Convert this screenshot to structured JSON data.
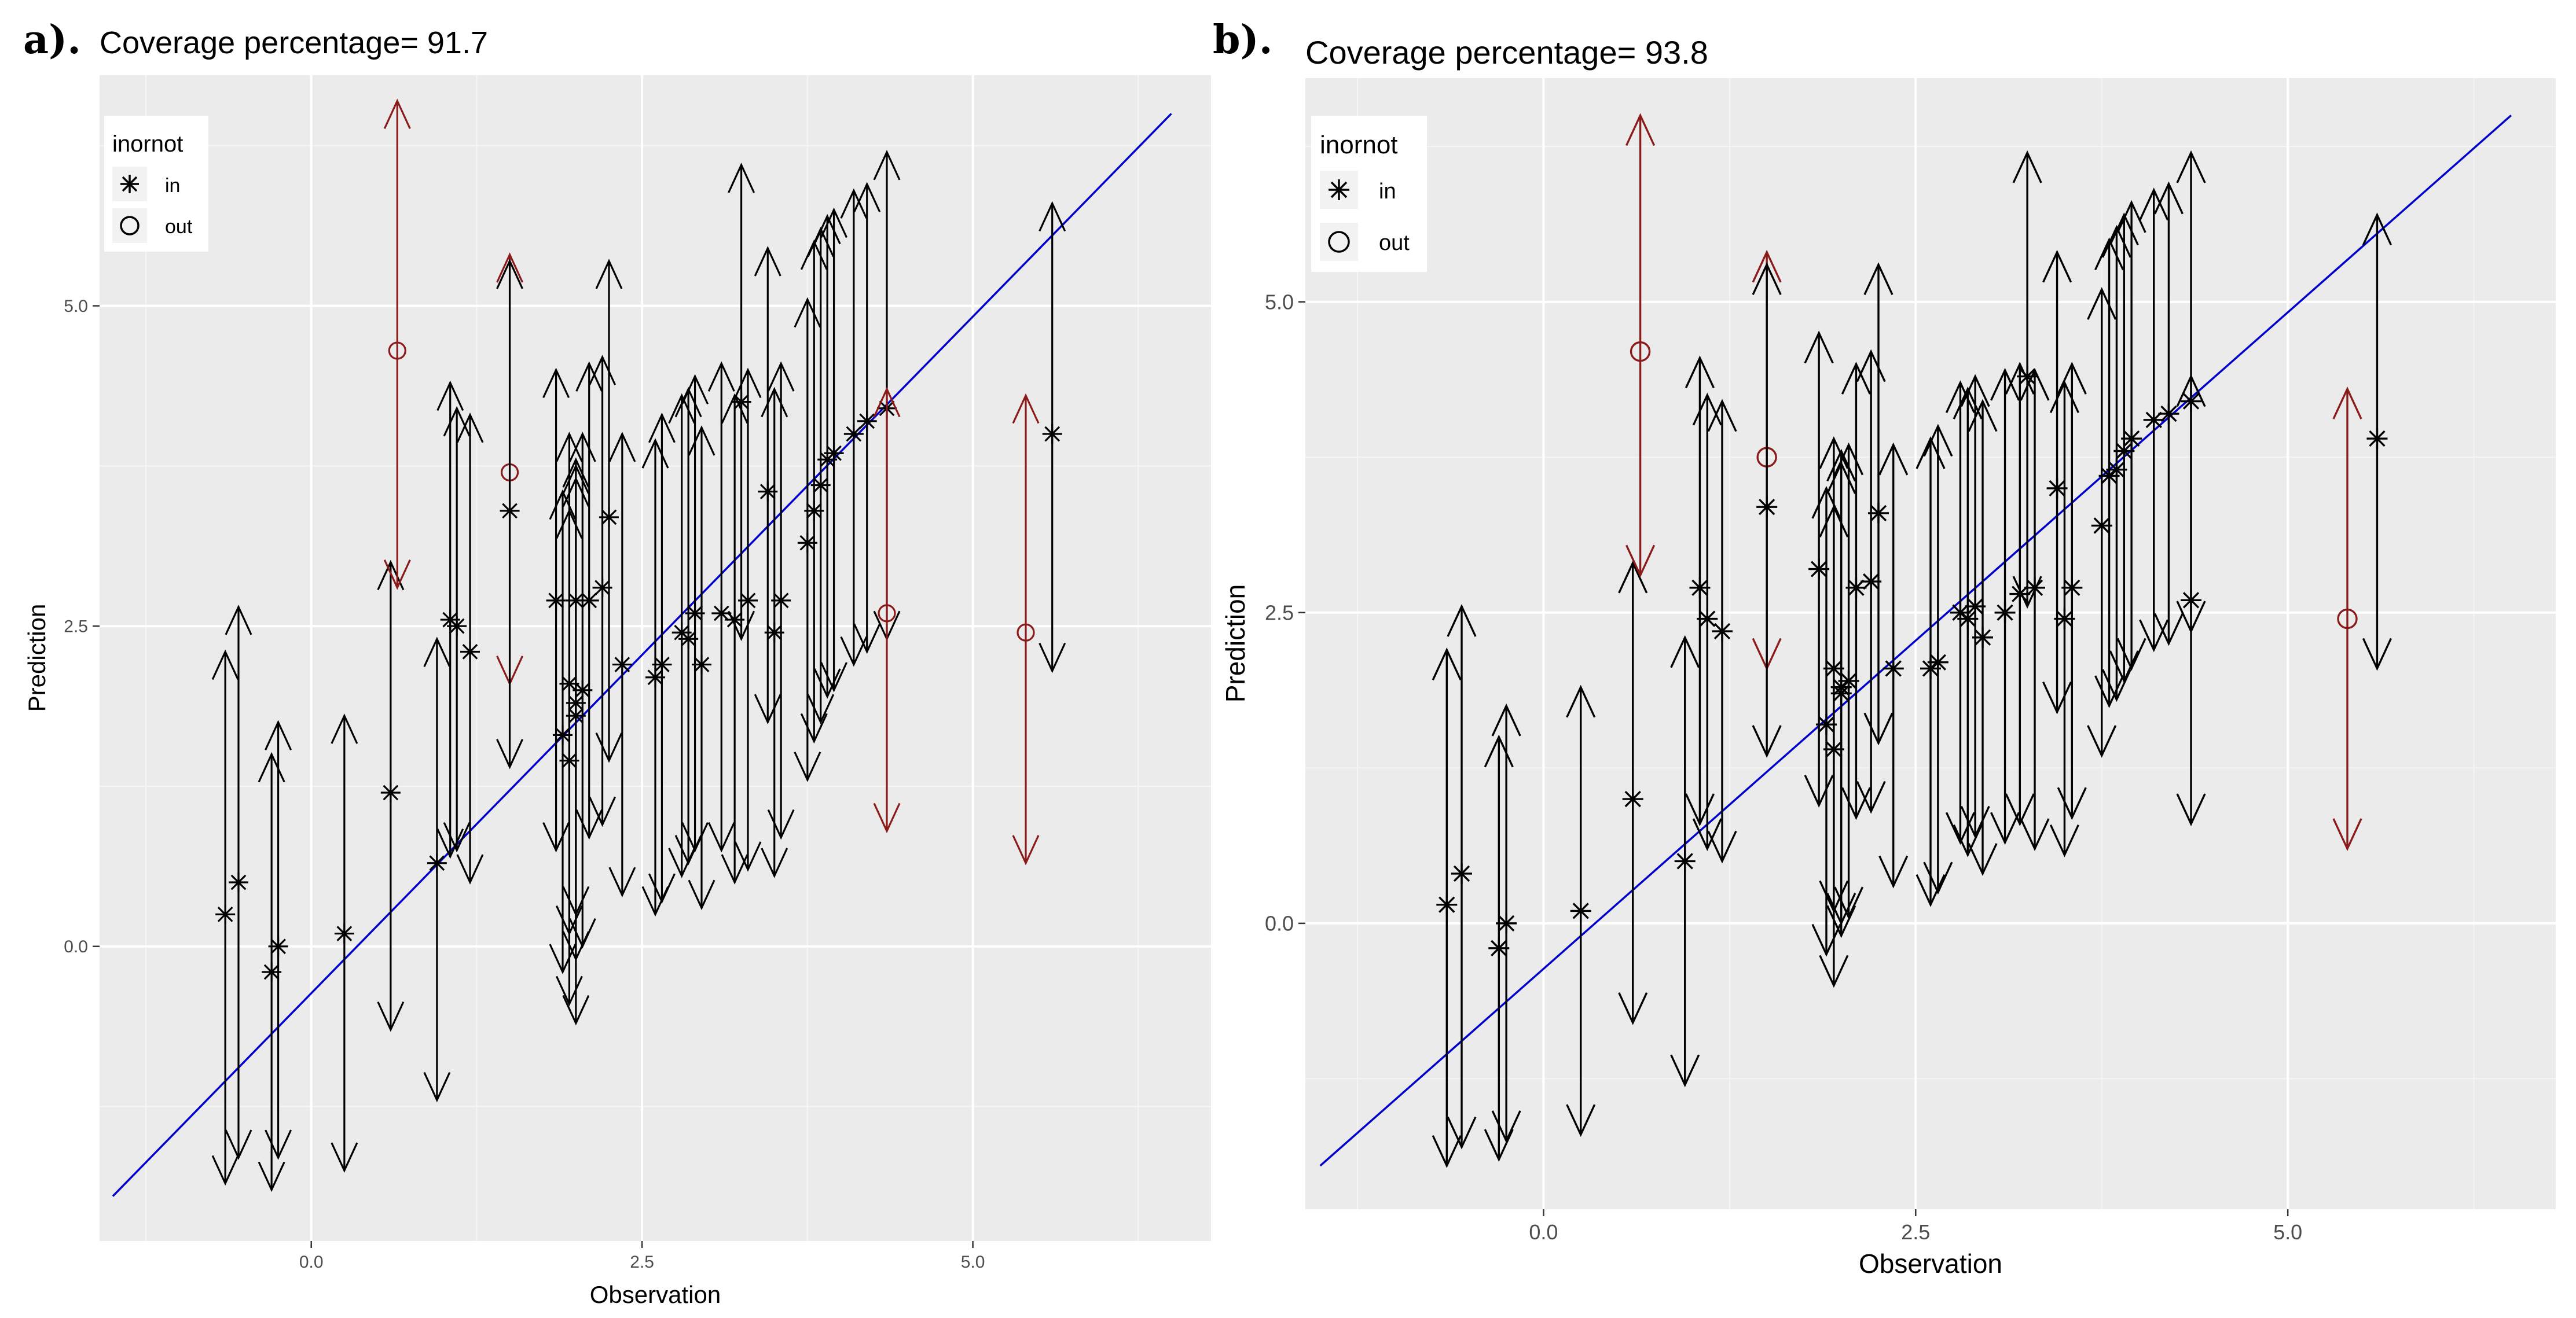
{
  "chart_data": [
    {
      "type": "scatter",
      "panel_label": "a).",
      "title": "Coverage percentage= 91.7",
      "xlabel": "Observation",
      "ylabel": "Prediction",
      "xlim": [
        -1.6,
        6.8
      ],
      "ylim": [
        -2.3,
        6.8
      ],
      "x_ticks": [
        "0.0",
        "2.5",
        "5.0"
      ],
      "y_ticks": [
        "0.0",
        "2.5",
        "5.0"
      ],
      "reference_line": {
        "x": [
          -1.5,
          6.5
        ],
        "y": [
          -1.95,
          6.5
        ],
        "color": "#0000cc"
      },
      "legend": {
        "title": "inornot",
        "position": "top-left",
        "entries": [
          "in",
          "out"
        ]
      },
      "colors": {
        "in": "#000000",
        "out": "#8b1a1a"
      },
      "points": [
        {
          "x": -0.65,
          "y": 0.25,
          "lo": -1.85,
          "hi": 2.3,
          "status": "in"
        },
        {
          "x": -0.55,
          "y": 0.5,
          "lo": -1.65,
          "hi": 2.65,
          "status": "in"
        },
        {
          "x": -0.3,
          "y": -0.2,
          "lo": -1.9,
          "hi": 1.5,
          "status": "in"
        },
        {
          "x": -0.25,
          "y": 0.0,
          "lo": -1.65,
          "hi": 1.75,
          "status": "in"
        },
        {
          "x": 0.25,
          "y": 0.1,
          "lo": -1.75,
          "hi": 1.8,
          "status": "in"
        },
        {
          "x": 0.6,
          "y": 1.2,
          "lo": -0.65,
          "hi": 3.0,
          "status": "in"
        },
        {
          "x": 0.65,
          "y": 4.65,
          "lo": 2.8,
          "hi": 6.6,
          "status": "out"
        },
        {
          "x": 0.95,
          "y": 0.65,
          "lo": -1.2,
          "hi": 2.4,
          "status": "in"
        },
        {
          "x": 1.05,
          "y": 2.55,
          "lo": 0.7,
          "hi": 4.4,
          "status": "in"
        },
        {
          "x": 1.1,
          "y": 2.5,
          "lo": 0.75,
          "hi": 4.2,
          "status": "in"
        },
        {
          "x": 1.2,
          "y": 2.3,
          "lo": 0.5,
          "hi": 4.15,
          "status": "in"
        },
        {
          "x": 1.5,
          "y": 3.7,
          "lo": 2.05,
          "hi": 5.4,
          "status": "out"
        },
        {
          "x": 1.5,
          "y": 3.4,
          "lo": 1.4,
          "hi": 5.35,
          "status": "in"
        },
        {
          "x": 1.85,
          "y": 2.7,
          "lo": 0.75,
          "hi": 4.5,
          "status": "in"
        },
        {
          "x": 1.9,
          "y": 1.65,
          "lo": -0.2,
          "hi": 3.55,
          "status": "in"
        },
        {
          "x": 1.95,
          "y": 1.45,
          "lo": -0.45,
          "hi": 3.4,
          "status": "in"
        },
        {
          "x": 1.95,
          "y": 2.05,
          "lo": 0.1,
          "hi": 4.0,
          "status": "in"
        },
        {
          "x": 2.0,
          "y": 1.9,
          "lo": -0.6,
          "hi": 3.75,
          "status": "in"
        },
        {
          "x": 2.0,
          "y": 1.8,
          "lo": -0.1,
          "hi": 3.65,
          "status": "in"
        },
        {
          "x": 2.0,
          "y": 2.7,
          "lo": 0.25,
          "hi": 3.8,
          "status": "in"
        },
        {
          "x": 2.05,
          "y": 2.0,
          "lo": 0.0,
          "hi": 4.0,
          "status": "in"
        },
        {
          "x": 2.1,
          "y": 2.7,
          "lo": 0.85,
          "hi": 4.55,
          "status": "in"
        },
        {
          "x": 2.2,
          "y": 2.8,
          "lo": 0.95,
          "hi": 4.6,
          "status": "in"
        },
        {
          "x": 2.25,
          "y": 3.35,
          "lo": 1.45,
          "hi": 5.35,
          "status": "in"
        },
        {
          "x": 2.35,
          "y": 2.2,
          "lo": 0.4,
          "hi": 4.0,
          "status": "in"
        },
        {
          "x": 2.6,
          "y": 2.1,
          "lo": 0.25,
          "hi": 3.95,
          "status": "in"
        },
        {
          "x": 2.65,
          "y": 2.2,
          "lo": 0.35,
          "hi": 4.15,
          "status": "in"
        },
        {
          "x": 2.8,
          "y": 2.45,
          "lo": 0.55,
          "hi": 4.3,
          "status": "in"
        },
        {
          "x": 2.85,
          "y": 2.4,
          "lo": 0.65,
          "hi": 4.35,
          "status": "in"
        },
        {
          "x": 2.9,
          "y": 2.6,
          "lo": 0.75,
          "hi": 4.45,
          "status": "in"
        },
        {
          "x": 2.95,
          "y": 2.2,
          "lo": 0.3,
          "hi": 4.05,
          "status": "in"
        },
        {
          "x": 3.1,
          "y": 2.6,
          "lo": 0.75,
          "hi": 4.55,
          "status": "in"
        },
        {
          "x": 3.2,
          "y": 2.55,
          "lo": 0.5,
          "hi": 4.3,
          "status": "in"
        },
        {
          "x": 3.25,
          "y": 4.25,
          "lo": 2.4,
          "hi": 6.1,
          "status": "in"
        },
        {
          "x": 3.3,
          "y": 2.7,
          "lo": 0.6,
          "hi": 4.5,
          "status": "in"
        },
        {
          "x": 3.45,
          "y": 3.55,
          "lo": 1.75,
          "hi": 5.45,
          "status": "in"
        },
        {
          "x": 3.5,
          "y": 2.45,
          "lo": 0.55,
          "hi": 4.35,
          "status": "in"
        },
        {
          "x": 3.55,
          "y": 2.7,
          "lo": 0.85,
          "hi": 4.55,
          "status": "in"
        },
        {
          "x": 3.75,
          "y": 3.15,
          "lo": 1.3,
          "hi": 5.05,
          "status": "in"
        },
        {
          "x": 3.8,
          "y": 3.4,
          "lo": 1.6,
          "hi": 5.5,
          "status": "in"
        },
        {
          "x": 3.85,
          "y": 3.6,
          "lo": 1.75,
          "hi": 5.6,
          "status": "in"
        },
        {
          "x": 3.9,
          "y": 3.8,
          "lo": 1.95,
          "hi": 5.7,
          "status": "in"
        },
        {
          "x": 3.95,
          "y": 3.85,
          "lo": 2.0,
          "hi": 5.75,
          "status": "in"
        },
        {
          "x": 4.1,
          "y": 4.0,
          "lo": 2.2,
          "hi": 5.9,
          "status": "in"
        },
        {
          "x": 4.2,
          "y": 4.1,
          "lo": 2.3,
          "hi": 5.95,
          "status": "in"
        },
        {
          "x": 4.35,
          "y": 4.2,
          "lo": 2.4,
          "hi": 6.2,
          "status": "in"
        },
        {
          "x": 4.35,
          "y": 2.6,
          "lo": 0.9,
          "hi": 4.35,
          "status": "out"
        },
        {
          "x": 5.4,
          "y": 2.45,
          "lo": 0.65,
          "hi": 4.3,
          "status": "out"
        },
        {
          "x": 5.6,
          "y": 4.0,
          "lo": 2.15,
          "hi": 5.8,
          "status": "in"
        }
      ]
    },
    {
      "type": "scatter",
      "panel_label": "b).",
      "title": "Coverage percentage= 93.8",
      "xlabel": "Observation",
      "ylabel": "Prediction",
      "xlim": [
        -1.6,
        6.8
      ],
      "ylim": [
        -2.3,
        6.8
      ],
      "x_ticks": [
        "0.0",
        "2.5",
        "5.0"
      ],
      "y_ticks": [
        "0.0",
        "2.5",
        "5.0"
      ],
      "reference_line": {
        "x": [
          -1.5,
          6.5
        ],
        "y": [
          -1.95,
          6.5
        ],
        "color": "#0000cc"
      },
      "legend": {
        "title": "inornot",
        "position": "top-left",
        "entries": [
          "in",
          "out"
        ]
      },
      "colors": {
        "in": "#000000",
        "out": "#8b1a1a"
      },
      "points": [
        {
          "x": -0.65,
          "y": 0.15,
          "lo": -1.95,
          "hi": 2.2,
          "status": "in"
        },
        {
          "x": -0.55,
          "y": 0.4,
          "lo": -1.8,
          "hi": 2.55,
          "status": "in"
        },
        {
          "x": -0.3,
          "y": -0.2,
          "lo": -1.9,
          "hi": 1.5,
          "status": "in"
        },
        {
          "x": -0.25,
          "y": 0.0,
          "lo": -1.75,
          "hi": 1.75,
          "status": "in"
        },
        {
          "x": 0.25,
          "y": 0.1,
          "lo": -1.7,
          "hi": 1.9,
          "status": "in"
        },
        {
          "x": 0.6,
          "y": 1.0,
          "lo": -0.8,
          "hi": 2.9,
          "status": "in"
        },
        {
          "x": 0.65,
          "y": 4.6,
          "lo": 2.8,
          "hi": 6.5,
          "status": "out"
        },
        {
          "x": 0.95,
          "y": 0.5,
          "lo": -1.3,
          "hi": 2.3,
          "status": "in"
        },
        {
          "x": 1.05,
          "y": 2.7,
          "lo": 0.8,
          "hi": 4.55,
          "status": "in"
        },
        {
          "x": 1.1,
          "y": 2.45,
          "lo": 0.6,
          "hi": 4.25,
          "status": "in"
        },
        {
          "x": 1.2,
          "y": 2.35,
          "lo": 0.5,
          "hi": 4.2,
          "status": "in"
        },
        {
          "x": 1.5,
          "y": 3.75,
          "lo": 2.05,
          "hi": 5.4,
          "status": "out"
        },
        {
          "x": 1.5,
          "y": 3.35,
          "lo": 1.35,
          "hi": 5.3,
          "status": "in"
        },
        {
          "x": 1.85,
          "y": 2.85,
          "lo": 0.95,
          "hi": 4.75,
          "status": "in"
        },
        {
          "x": 1.9,
          "y": 1.6,
          "lo": -0.25,
          "hi": 3.5,
          "status": "in"
        },
        {
          "x": 1.95,
          "y": 1.4,
          "lo": -0.5,
          "hi": 3.35,
          "status": "in"
        },
        {
          "x": 1.95,
          "y": 2.05,
          "lo": 0.1,
          "hi": 3.9,
          "status": "in"
        },
        {
          "x": 2.0,
          "y": 1.9,
          "lo": 0.0,
          "hi": 3.8,
          "status": "in"
        },
        {
          "x": 2.0,
          "y": 1.85,
          "lo": -0.1,
          "hi": 3.7,
          "status": "in"
        },
        {
          "x": 2.05,
          "y": 1.95,
          "lo": 0.05,
          "hi": 3.85,
          "status": "in"
        },
        {
          "x": 2.1,
          "y": 2.7,
          "lo": 0.85,
          "hi": 4.5,
          "status": "in"
        },
        {
          "x": 2.2,
          "y": 2.75,
          "lo": 0.9,
          "hi": 4.6,
          "status": "in"
        },
        {
          "x": 2.25,
          "y": 3.3,
          "lo": 1.45,
          "hi": 5.3,
          "status": "in"
        },
        {
          "x": 2.35,
          "y": 2.05,
          "lo": 0.3,
          "hi": 3.85,
          "status": "in"
        },
        {
          "x": 2.6,
          "y": 2.05,
          "lo": 0.15,
          "hi": 3.9,
          "status": "in"
        },
        {
          "x": 2.65,
          "y": 2.1,
          "lo": 0.25,
          "hi": 4.0,
          "status": "in"
        },
        {
          "x": 2.8,
          "y": 2.5,
          "lo": 0.65,
          "hi": 4.35,
          "status": "in"
        },
        {
          "x": 2.85,
          "y": 2.45,
          "lo": 0.55,
          "hi": 4.3,
          "status": "in"
        },
        {
          "x": 2.9,
          "y": 2.55,
          "lo": 0.7,
          "hi": 4.4,
          "status": "in"
        },
        {
          "x": 2.95,
          "y": 2.3,
          "lo": 0.4,
          "hi": 4.2,
          "status": "in"
        },
        {
          "x": 3.1,
          "y": 2.5,
          "lo": 0.65,
          "hi": 4.45,
          "status": "in"
        },
        {
          "x": 3.2,
          "y": 2.65,
          "lo": 0.8,
          "hi": 4.5,
          "status": "in"
        },
        {
          "x": 3.25,
          "y": 4.4,
          "lo": 2.55,
          "hi": 6.2,
          "status": "in"
        },
        {
          "x": 3.3,
          "y": 2.7,
          "lo": 0.6,
          "hi": 4.45,
          "status": "in"
        },
        {
          "x": 3.45,
          "y": 3.5,
          "lo": 1.7,
          "hi": 5.4,
          "status": "in"
        },
        {
          "x": 3.5,
          "y": 2.45,
          "lo": 0.55,
          "hi": 4.35,
          "status": "in"
        },
        {
          "x": 3.55,
          "y": 2.7,
          "lo": 0.85,
          "hi": 4.5,
          "status": "in"
        },
        {
          "x": 3.75,
          "y": 3.2,
          "lo": 1.35,
          "hi": 5.1,
          "status": "in"
        },
        {
          "x": 3.8,
          "y": 3.6,
          "lo": 1.75,
          "hi": 5.5,
          "status": "in"
        },
        {
          "x": 3.85,
          "y": 3.65,
          "lo": 1.8,
          "hi": 5.6,
          "status": "in"
        },
        {
          "x": 3.9,
          "y": 3.8,
          "lo": 1.95,
          "hi": 5.7,
          "status": "in"
        },
        {
          "x": 3.95,
          "y": 3.9,
          "lo": 2.05,
          "hi": 5.8,
          "status": "in"
        },
        {
          "x": 4.1,
          "y": 4.05,
          "lo": 2.2,
          "hi": 5.9,
          "status": "in"
        },
        {
          "x": 4.2,
          "y": 4.1,
          "lo": 2.25,
          "hi": 5.95,
          "status": "in"
        },
        {
          "x": 4.35,
          "y": 4.2,
          "lo": 2.35,
          "hi": 6.2,
          "status": "in"
        },
        {
          "x": 4.35,
          "y": 2.6,
          "lo": 0.8,
          "hi": 4.4,
          "status": "in"
        },
        {
          "x": 5.4,
          "y": 2.45,
          "lo": 0.6,
          "hi": 4.3,
          "status": "out"
        },
        {
          "x": 5.6,
          "y": 3.9,
          "lo": 2.05,
          "hi": 5.7,
          "status": "in"
        }
      ]
    }
  ]
}
